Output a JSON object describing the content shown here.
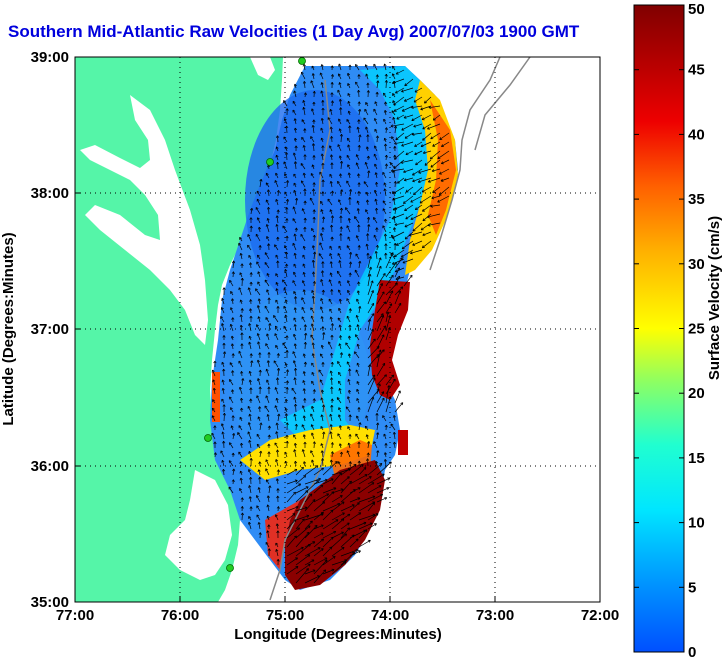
{
  "title": "Southern Mid-Atlantic Raw Velocities (1 Day Avg) 2007/07/03 1900 GMT",
  "xlabel": "Longitude (Degrees:Minutes)",
  "ylabel": "Latitude (Degrees:Minutes)",
  "x_ticks": [
    "77:00",
    "76:00",
    "75:00",
    "74:00",
    "73:00",
    "72:00"
  ],
  "y_ticks": [
    "39:00",
    "38:00",
    "37:00",
    "36:00",
    "35:00"
  ],
  "colorbar": {
    "label": "Surface Velocity (cm/s)",
    "ticks": [
      "50",
      "45",
      "40",
      "35",
      "30",
      "25",
      "20",
      "15",
      "10",
      "5",
      "0"
    ],
    "min": 0,
    "max": 50
  },
  "colors": {
    "land": "#55f5a8",
    "title": "#0000dd",
    "station": "#22cc22"
  },
  "axes": {
    "lon_range": [
      -77,
      -72
    ],
    "lat_range": [
      35,
      39
    ],
    "grid": "dotted"
  }
}
